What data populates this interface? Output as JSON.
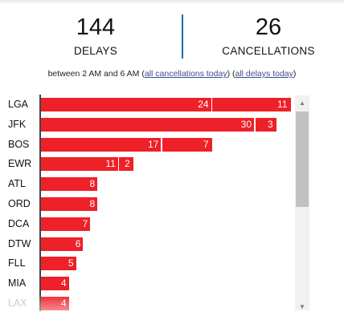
{
  "stats": {
    "delays": {
      "value": "144",
      "label": "DELAYS"
    },
    "cancellations": {
      "value": "26",
      "label": "CANCELLATIONS"
    }
  },
  "subtitle": {
    "prefix": "between 2 AM and 6 AM (",
    "link1": "all cancellations today",
    "middle": ") (",
    "link2": "all delays today",
    "suffix": ")"
  },
  "scrollbar": {
    "up": "▲",
    "down": "▼"
  },
  "colors": {
    "bar": "#ee2028",
    "divider": "#1a6fae"
  },
  "chart_data": {
    "type": "bar",
    "orientation": "horizontal",
    "stacked": true,
    "categories": [
      "LGA",
      "JFK",
      "BOS",
      "EWR",
      "ATL",
      "ORD",
      "DCA",
      "DTW",
      "FLL",
      "MIA",
      "LAX"
    ],
    "series": [
      {
        "values": [
          24,
          30,
          17,
          11,
          8,
          8,
          7,
          6,
          5,
          4,
          4
        ]
      },
      {
        "values": [
          11,
          3,
          7,
          2,
          0,
          0,
          0,
          0,
          0,
          0,
          0
        ]
      }
    ],
    "title": "",
    "xlabel": "",
    "ylabel": "",
    "grid": false
  }
}
